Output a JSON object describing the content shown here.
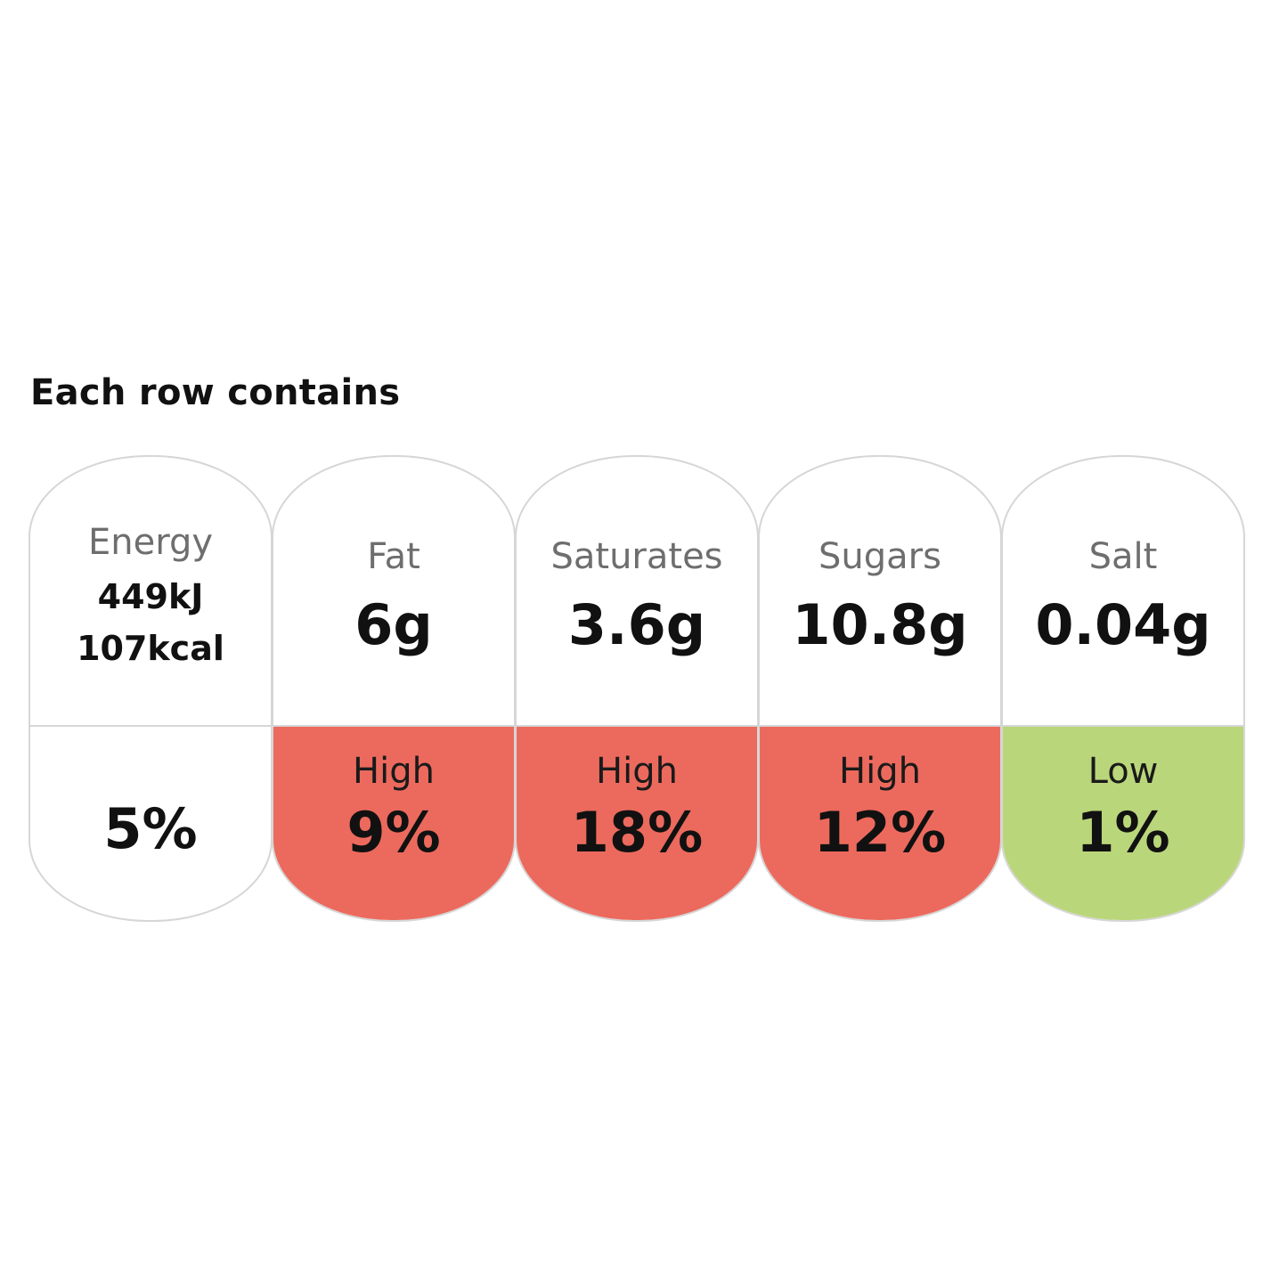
{
  "heading": "Each row contains",
  "colors": {
    "high": "#ec6a5d",
    "low": "#bad67a",
    "neutral": "#ffffff",
    "border": "#d6d6d6"
  },
  "energy": {
    "label": "Energy",
    "kj": "449kJ",
    "kcal": "107kcal",
    "ri": "5%"
  },
  "nutrients": [
    {
      "label": "Fat",
      "amount": "6g",
      "level": "High",
      "ri": "9%",
      "color": "#ec6a5d"
    },
    {
      "label": "Saturates",
      "amount": "3.6g",
      "level": "High",
      "ri": "18%",
      "color": "#ec6a5d"
    },
    {
      "label": "Sugars",
      "amount": "10.8g",
      "level": "High",
      "ri": "12%",
      "color": "#ec6a5d"
    },
    {
      "label": "Salt",
      "amount": "0.04g",
      "level": "Low",
      "ri": "1%",
      "color": "#bad67a"
    }
  ]
}
